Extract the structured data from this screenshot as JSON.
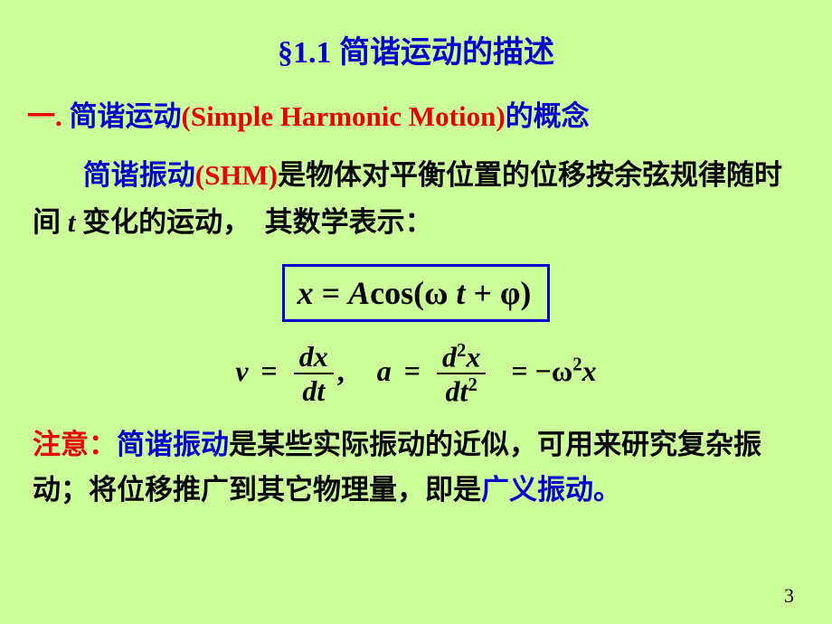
{
  "title": "§1.1  简谐运动的描述",
  "heading": {
    "prefix": "一.",
    "term": "简谐运动",
    "paren": "(Simple Harmonic Motion)",
    "suffix": "的概念"
  },
  "body1": {
    "blue": "简谐振动",
    "paren": "(SHM)",
    "rest1": "是物体对平衡位置的位移按余弦规律随时间 ",
    "t": "t ",
    "rest2": "变化的运动，",
    "rest3": "其数学表示："
  },
  "formula": {
    "x": "x",
    "eq": " = ",
    "A": " A",
    "cos": "cos(",
    "omega": "ω",
    "tspace": " t ",
    "plus": "+ ",
    "phi": "φ",
    "close": ")"
  },
  "deriv": {
    "v": "v",
    "eq": "=",
    "dx": "dx",
    "dt": "dt",
    "comma": ",",
    "a": "a",
    "d2x_d": "d",
    "d2x_2": "2",
    "d2x_x": "x",
    "dt2_dt": "dt",
    "dt2_2": "2",
    "neg": "= −ω",
    "sq": "2",
    "xend": "x"
  },
  "note": {
    "label": "注意：",
    "blue1": "简谐振动",
    "mid": "是某些实际振动的近似，可用来研究复杂振动；将位移推广到其它物理量，即是",
    "blue2": "广义振动",
    "period": "。"
  },
  "page": "3",
  "colors": {
    "bg": "#ccff99",
    "red": "#e60000",
    "blue": "#0000cc",
    "black": "#000000"
  }
}
